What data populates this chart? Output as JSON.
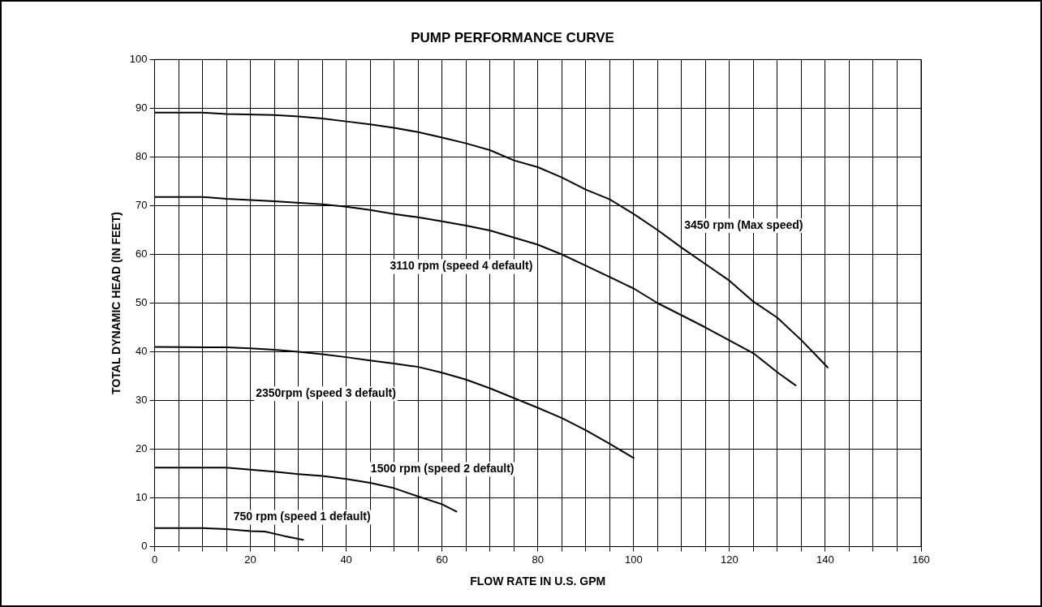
{
  "chart_data": {
    "type": "line",
    "title": "PUMP PERFORMANCE CURVE",
    "xlabel": "FLOW RATE IN U.S. GPM",
    "ylabel": "TOTAL DYNAMIC HEAD (IN FEET)",
    "xlim": [
      0,
      160
    ],
    "ylim": [
      0,
      100
    ],
    "xticks": [
      0,
      {
        "value": 5,
        "label": null
      },
      {
        "value": 10,
        "label": null
      },
      {
        "value": 15,
        "label": null
      },
      20,
      {
        "value": 25,
        "label": null
      },
      {
        "value": 30,
        "label": null
      },
      {
        "value": 35,
        "label": null
      },
      40,
      {
        "value": 45,
        "label": null
      },
      {
        "value": 50,
        "label": null
      },
      {
        "value": 55,
        "label": null
      },
      60,
      {
        "value": 65,
        "label": null
      },
      {
        "value": 70,
        "label": null
      },
      {
        "value": 75,
        "label": null
      },
      80,
      {
        "value": 85,
        "label": null
      },
      {
        "value": 90,
        "label": null
      },
      {
        "value": 95,
        "label": null
      },
      100,
      {
        "value": 105,
        "label": null
      },
      {
        "value": 110,
        "label": null
      },
      {
        "value": 115,
        "label": null
      },
      120,
      {
        "value": 125,
        "label": null
      },
      {
        "value": 130,
        "label": null
      },
      {
        "value": 135,
        "label": null
      },
      140,
      {
        "value": 145,
        "label": null
      },
      {
        "value": 150,
        "label": null
      },
      {
        "value": 155,
        "label": null
      },
      160
    ],
    "yticks": [
      0,
      10,
      20,
      30,
      40,
      50,
      60,
      70,
      80,
      90,
      100
    ],
    "grid": true,
    "legend": false,
    "marker": "none",
    "line_style": "solid",
    "series": [
      {
        "name": "3450 rpm (Max speed)",
        "color": "#000000",
        "x": [
          0,
          10,
          15,
          25,
          30,
          35,
          40,
          45,
          50,
          55,
          60,
          65,
          70,
          75,
          80,
          85,
          90,
          95,
          100,
          105,
          110,
          115,
          120,
          125,
          130,
          135,
          140.5
        ],
        "values": [
          89.1,
          89.1,
          88.8,
          88.6,
          88.3,
          87.9,
          87.3,
          86.7,
          86,
          85.1,
          84,
          82.8,
          81.4,
          79.3,
          77.9,
          75.8,
          73.3,
          71.3,
          68.3,
          65,
          61.4,
          58,
          54.6,
          50.3,
          47,
          42.4,
          36.8
        ]
      },
      {
        "name": "3110 rpm (speed 4 default)",
        "color": "#000000",
        "x": [
          0,
          10,
          15,
          25,
          35,
          40,
          45,
          50,
          55,
          60,
          65,
          70,
          80,
          85,
          90,
          100,
          105,
          115,
          125,
          130,
          133.8
        ],
        "values": [
          71.8,
          71.8,
          71.4,
          70.9,
          70.3,
          69.8,
          69.1,
          68.3,
          67.6,
          66.8,
          65.9,
          64.9,
          62,
          60,
          57.7,
          53,
          50,
          45,
          39.7,
          35.8,
          33.1
        ]
      },
      {
        "name": "2350rpm (speed 3 default)",
        "color": "#000000",
        "x": [
          0,
          15,
          20,
          25,
          30,
          35,
          40,
          45,
          50,
          55,
          60,
          65,
          70,
          75,
          80,
          85,
          90,
          95,
          100
        ],
        "values": [
          41,
          40.9,
          40.7,
          40.4,
          40,
          39.5,
          38.9,
          38.2,
          37.6,
          36.9,
          35.7,
          34.3,
          32.5,
          30.5,
          28.5,
          26.4,
          23.9,
          21.1,
          18.2
        ]
      },
      {
        "name": "1500 rpm (speed 2 default)",
        "color": "#000000",
        "x": [
          0,
          15,
          20,
          25,
          30,
          35,
          40,
          45,
          50,
          55,
          60,
          63
        ],
        "values": [
          16.2,
          16.2,
          15.8,
          15.4,
          14.9,
          14.5,
          13.9,
          13.1,
          12,
          10.3,
          8.7,
          7.2
        ]
      },
      {
        "name": "750 rpm (speed 1 default)",
        "color": "#000000",
        "x": [
          0,
          10,
          15,
          20,
          23,
          27,
          31
        ],
        "values": [
          3.8,
          3.8,
          3.6,
          3.2,
          3.1,
          2.2,
          1.4
        ]
      }
    ]
  }
}
